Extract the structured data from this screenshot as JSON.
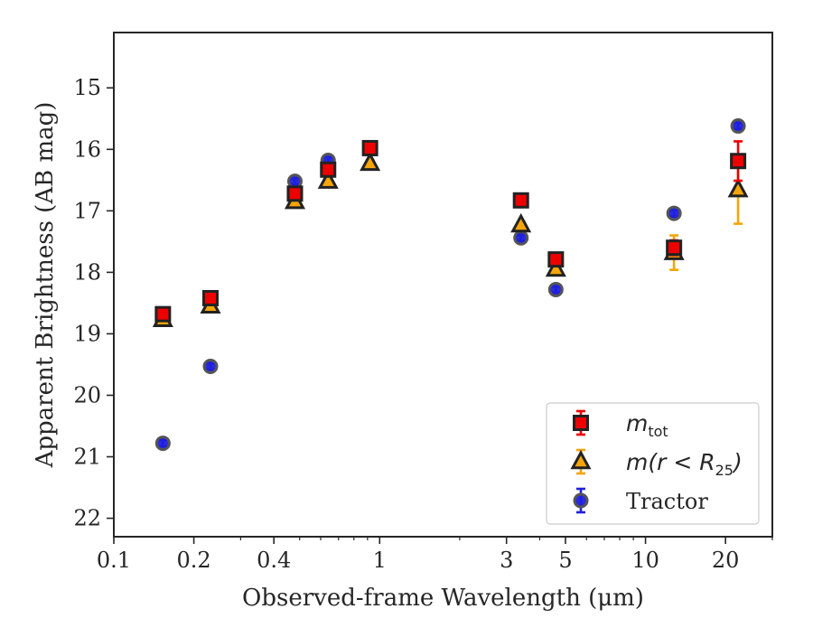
{
  "chart_data": {
    "type": "scatter",
    "xlabel": "Observed-frame Wavelength (μm)",
    "ylabel": "Apparent Brightness (AB mag)",
    "x_scale": "log",
    "xlim": [
      0.1,
      30
    ],
    "ylim": [
      22.3,
      14.1
    ],
    "y_inverted": true,
    "x_ticks": [
      {
        "value": 0.1,
        "label": "0.1"
      },
      {
        "value": 0.2,
        "label": "0.2"
      },
      {
        "value": 0.4,
        "label": "0.4"
      },
      {
        "value": 1,
        "label": "1"
      },
      {
        "value": 3,
        "label": "3"
      },
      {
        "value": 5,
        "label": "5"
      },
      {
        "value": 10,
        "label": "10"
      },
      {
        "value": 20,
        "label": "20"
      }
    ],
    "x_minor_ticks": [
      0.3,
      0.5,
      0.6,
      0.7,
      0.8,
      0.9,
      2,
      4,
      6,
      7,
      8,
      9,
      30
    ],
    "y_ticks": [
      {
        "value": 15,
        "label": "15"
      },
      {
        "value": 16,
        "label": "16"
      },
      {
        "value": 17,
        "label": "17"
      },
      {
        "value": 18,
        "label": "18"
      },
      {
        "value": 19,
        "label": "19"
      },
      {
        "value": 20,
        "label": "20"
      },
      {
        "value": 21,
        "label": "21"
      },
      {
        "value": 22,
        "label": "22"
      }
    ],
    "grid": false,
    "legend_position": "lower-right",
    "series": [
      {
        "name": "Tractor",
        "legend_label": "Tractor",
        "marker": "circle",
        "color": "#1f1fdd",
        "edge_color": "#555555",
        "points": [
          {
            "x": 0.153,
            "y": 20.78,
            "err": 0.05
          },
          {
            "x": 0.231,
            "y": 19.53,
            "err": 0.05
          },
          {
            "x": 0.48,
            "y": 16.52,
            "err": 0.05
          },
          {
            "x": 0.64,
            "y": 16.18,
            "err": 0.05
          },
          {
            "x": 0.92,
            "y": 15.99,
            "err": 0.05
          },
          {
            "x": 3.4,
            "y": 17.44,
            "err": 0.05
          },
          {
            "x": 4.6,
            "y": 18.28,
            "err": 0.05
          },
          {
            "x": 12.8,
            "y": 17.04,
            "err": 0.05
          },
          {
            "x": 22.3,
            "y": 15.62,
            "err": 0.05
          }
        ]
      },
      {
        "name": "m(r<R25)",
        "legend_label": "m(r < R",
        "legend_sub": "25",
        "legend_suffix": ")",
        "marker": "triangle",
        "color": "#f5a50a",
        "edge_color": "#222222",
        "points": [
          {
            "x": 0.153,
            "y": 18.77,
            "err": 0.05
          },
          {
            "x": 0.231,
            "y": 18.55,
            "err": 0.05
          },
          {
            "x": 0.48,
            "y": 16.85,
            "err": 0.05
          },
          {
            "x": 0.64,
            "y": 16.52,
            "err": 0.05
          },
          {
            "x": 0.92,
            "y": 16.23,
            "err": 0.05
          },
          {
            "x": 3.4,
            "y": 17.23,
            "err": 0.05
          },
          {
            "x": 4.6,
            "y": 17.95,
            "err": 0.05
          },
          {
            "x": 12.8,
            "y": 17.68,
            "err": 0.28
          },
          {
            "x": 22.3,
            "y": 16.66,
            "err": 0.55
          }
        ]
      },
      {
        "name": "m_tot",
        "legend_label": "m",
        "legend_sub": "tot",
        "legend_suffix": "",
        "marker": "square",
        "color": "#ee0000",
        "edge_color": "#222222",
        "points": [
          {
            "x": 0.153,
            "y": 18.68,
            "err": 0.06
          },
          {
            "x": 0.231,
            "y": 18.42,
            "err": 0.06
          },
          {
            "x": 0.48,
            "y": 16.72,
            "err": 0.08
          },
          {
            "x": 0.64,
            "y": 16.33,
            "err": 0.08
          },
          {
            "x": 0.92,
            "y": 15.98,
            "err": 0.05
          },
          {
            "x": 3.4,
            "y": 16.83,
            "err": 0.05
          },
          {
            "x": 4.6,
            "y": 17.79,
            "err": 0.05
          },
          {
            "x": 12.8,
            "y": 17.6,
            "err": 0.12
          },
          {
            "x": 22.3,
            "y": 16.19,
            "err": 0.32
          }
        ]
      }
    ],
    "legend_order": [
      "m_tot",
      "m(r<R25)",
      "Tractor"
    ]
  }
}
